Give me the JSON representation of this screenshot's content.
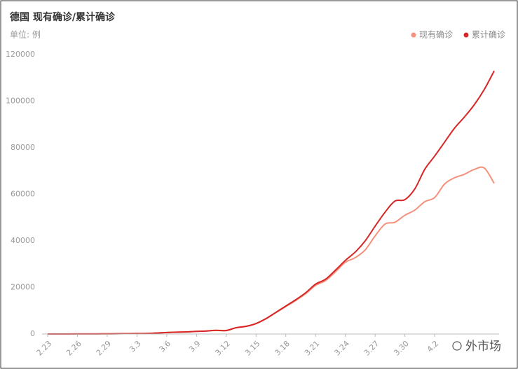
{
  "chart_data": {
    "type": "line",
    "title": "德国 现有确诊/累计确诊",
    "subtitle": "单位: 例",
    "watermark": "外市场",
    "categories": [
      "2.23",
      null,
      null,
      "2.26",
      null,
      null,
      "2.29",
      null,
      null,
      "3.3",
      null,
      null,
      "3.6",
      null,
      null,
      "3.9",
      null,
      null,
      "3.12",
      null,
      null,
      "3.15",
      null,
      null,
      "3.18",
      null,
      null,
      "3.21",
      null,
      null,
      "3.24",
      null,
      null,
      "3.27",
      null,
      null,
      "3.30",
      null,
      null,
      "4.2",
      null,
      null,
      null,
      null,
      null,
      null
    ],
    "series": [
      {
        "name": "现有确诊",
        "color": "#f4907b",
        "values": [
          14,
          14,
          16,
          19,
          24,
          50,
          62,
          112,
          145,
          183,
          234,
          392,
          628,
          780,
          885,
          1120,
          1275,
          1540,
          1480,
          2650,
          3250,
          4420,
          6500,
          9150,
          11800,
          14400,
          17300,
          20900,
          22900,
          26700,
          30800,
          32800,
          36100,
          42100,
          47200,
          48000,
          51000,
          53200,
          56800,
          58600,
          64400,
          67100,
          68600,
          70700,
          71300,
          64700
        ]
      },
      {
        "name": "累计确诊",
        "color": "#d72626",
        "values": [
          16,
          16,
          18,
          21,
          26,
          53,
          66,
          117,
          150,
          188,
          240,
          400,
          639,
          795,
          902,
          1139,
          1296,
          1567,
          1500,
          2700,
          3300,
          4500,
          6600,
          9300,
          12000,
          14700,
          17700,
          21400,
          23500,
          27400,
          31600,
          35200,
          40000,
          46300,
          52300,
          57100,
          57700,
          62300,
          70700,
          76400,
          82400,
          88400,
          93200,
          98500,
          105000,
          113000
        ]
      }
    ],
    "ylim": [
      0,
      120000
    ],
    "yticks": [
      0,
      20000,
      40000,
      60000,
      80000,
      100000,
      120000
    ],
    "grid": false,
    "legend": "top-right"
  }
}
